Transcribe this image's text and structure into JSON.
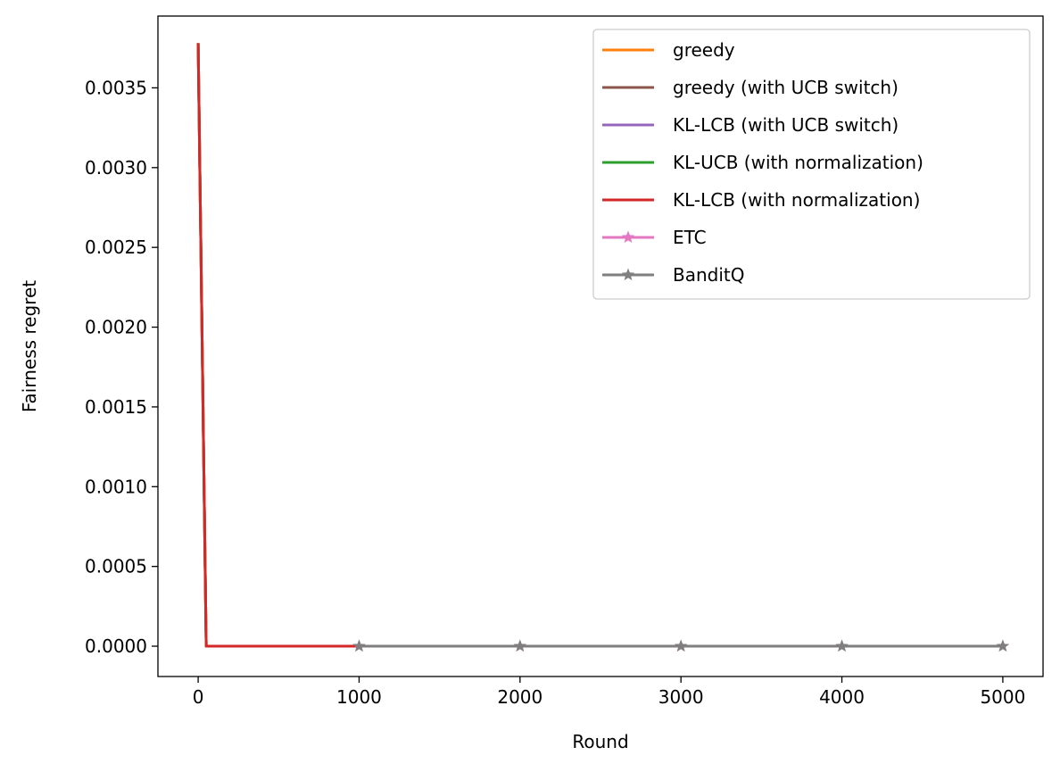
{
  "chart_data": {
    "type": "line",
    "title": "",
    "xlabel": "Round",
    "ylabel": "Fairness regret",
    "xlim": [
      -250,
      5250
    ],
    "ylim": [
      -0.00019,
      0.00395
    ],
    "xticks": [
      0,
      1000,
      2000,
      3000,
      4000,
      5000
    ],
    "xtick_labels": [
      "0",
      "1000",
      "2000",
      "3000",
      "4000",
      "5000"
    ],
    "yticks": [
      0,
      0.0005,
      0.001,
      0.0015,
      0.002,
      0.0025,
      0.003,
      0.0035
    ],
    "ytick_labels": [
      "0.0000",
      "0.0005",
      "0.0010",
      "0.0015",
      "0.0020",
      "0.0025",
      "0.0030",
      "0.0035"
    ],
    "grid": false,
    "legend_position": "upper-right",
    "series": [
      {
        "name": "greedy",
        "color": "#ff7f0e",
        "marker": "none",
        "x": [
          0,
          50,
          1000
        ],
        "y": [
          0.00378,
          0.0,
          0.0
        ]
      },
      {
        "name": "greedy (with UCB switch)",
        "color": "#8c564b",
        "marker": "none",
        "x": [
          0,
          50,
          1000
        ],
        "y": [
          0.00378,
          0.0,
          0.0
        ]
      },
      {
        "name": "KL-LCB (with UCB switch)",
        "color": "#9467bd",
        "marker": "none",
        "x": [
          0,
          50,
          1000
        ],
        "y": [
          0.00378,
          0.0,
          0.0
        ]
      },
      {
        "name": "KL-UCB (with normalization)",
        "color": "#2ca02c",
        "marker": "none",
        "x": [
          0,
          50,
          1000
        ],
        "y": [
          0.00378,
          0.0,
          0.0
        ]
      },
      {
        "name": "KL-LCB (with normalization)",
        "color": "#d62728",
        "marker": "none",
        "x": [
          0,
          50,
          1000
        ],
        "y": [
          0.00378,
          0.0,
          0.0
        ]
      },
      {
        "name": "ETC",
        "color": "#e377c2",
        "marker": "star",
        "x": [
          1000,
          2000,
          3000,
          4000,
          5000
        ],
        "y": [
          0.0,
          0.0,
          0.0,
          0.0,
          0.0
        ]
      },
      {
        "name": "BanditQ",
        "color": "#7f7f7f",
        "marker": "star",
        "x": [
          1000,
          2000,
          3000,
          4000,
          5000
        ],
        "y": [
          0.0,
          0.0,
          0.0,
          0.0,
          0.0
        ]
      }
    ]
  }
}
